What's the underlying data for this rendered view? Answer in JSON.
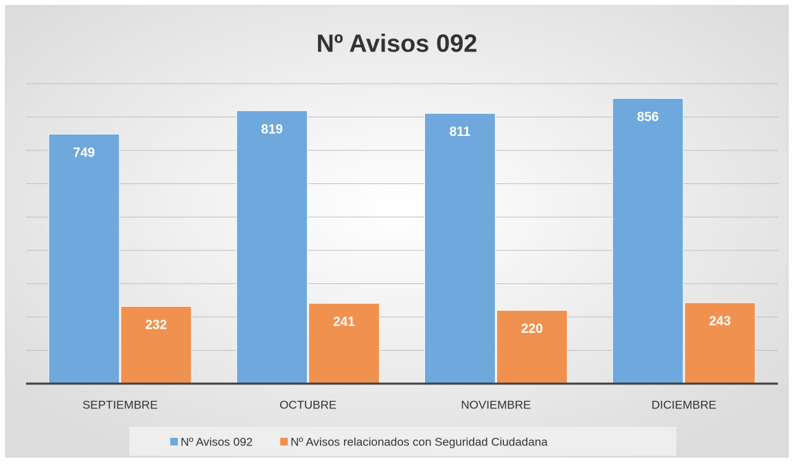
{
  "chart_data": {
    "type": "bar",
    "title": "Nº Avisos 092",
    "categories": [
      "SEPTIEMBRE",
      "OCTUBRE",
      "NOVIEMBRE",
      "DICIEMBRE"
    ],
    "series": [
      {
        "name": "Nº Avisos 092",
        "color": "#6fa8dc",
        "values": [
          749,
          819,
          811,
          856
        ]
      },
      {
        "name": "Nº Avisos relacionados con Seguridad Ciudadana",
        "color": "#f0914f",
        "values": [
          232,
          241,
          220,
          243
        ]
      }
    ],
    "ylim": [
      0,
      900
    ],
    "yticks": [
      0,
      100,
      200,
      300,
      400,
      500,
      600,
      700,
      800,
      900
    ],
    "grid": true
  }
}
